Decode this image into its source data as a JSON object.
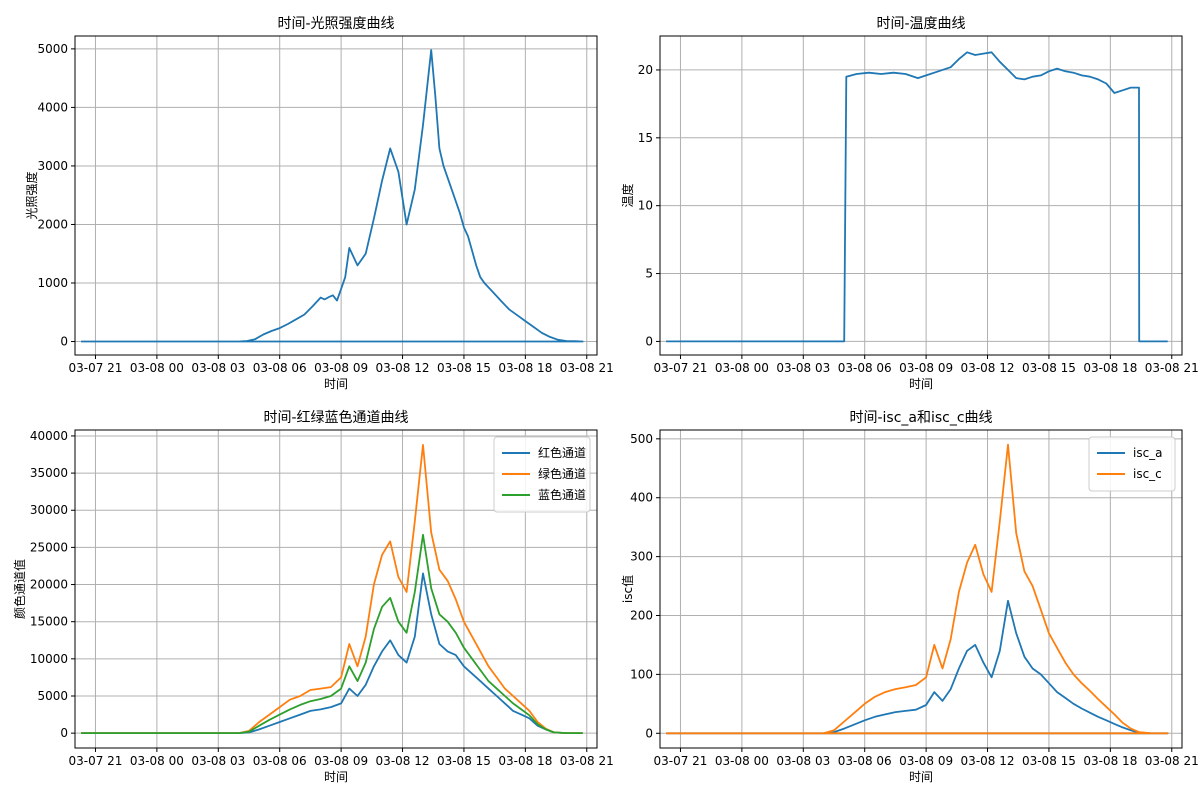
{
  "chart_data": [
    {
      "type": "line",
      "title": "时间-光照强度曲线",
      "xlabel": "时间",
      "ylabel": "光照强度",
      "x_ticks": [
        "03-07 21",
        "03-08 00",
        "03-08 03",
        "03-08 06",
        "03-08 09",
        "03-08 12",
        "03-08 15",
        "03-08 18",
        "03-08 21"
      ],
      "x_range_hours": [
        -1.0,
        24.5
      ],
      "ylim": [
        -230,
        5220
      ],
      "y_ticks": [
        0,
        1000,
        2000,
        3000,
        4000,
        5000
      ],
      "grid": true,
      "legend": null,
      "series": [
        {
          "color": "#1f77b4",
          "x": [
            -0.7,
            7.0,
            7.4,
            7.8,
            8.2,
            8.6,
            9.0,
            9.4,
            9.8,
            10.2,
            10.6,
            11.0,
            11.2,
            11.4,
            11.6,
            11.8,
            12.0,
            12.2,
            12.4,
            12.8,
            13.2,
            13.6,
            14.0,
            14.4,
            14.8,
            15.2,
            15.6,
            16.0,
            16.4,
            16.6,
            16.8,
            17.0,
            17.4,
            17.8,
            18.0,
            18.2,
            18.4,
            18.6,
            18.8,
            19.0,
            19.4,
            19.8,
            20.2,
            20.6,
            21.0,
            21.4,
            21.8,
            22.2,
            22.6,
            23.0,
            23.4,
            23.8,
            23.8,
            10.0,
            -0.7
          ],
          "values": [
            0,
            0,
            10,
            40,
            120,
            180,
            230,
            300,
            380,
            460,
            600,
            750,
            720,
            760,
            790,
            700,
            900,
            1100,
            1600,
            1300,
            1500,
            2100,
            2750,
            3300,
            2900,
            2000,
            2600,
            3700,
            4980,
            4200,
            3300,
            3000,
            2600,
            2200,
            1950,
            1800,
            1550,
            1300,
            1100,
            1000,
            850,
            700,
            550,
            450,
            350,
            250,
            150,
            80,
            30,
            10,
            5,
            0,
            0,
            0,
            0
          ]
        }
      ]
    },
    {
      "type": "line",
      "title": "时间-温度曲线",
      "xlabel": "时间",
      "ylabel": "温度",
      "x_ticks": [
        "03-07 21",
        "03-08 00",
        "03-08 03",
        "03-08 06",
        "03-08 09",
        "03-08 12",
        "03-08 15",
        "03-08 18",
        "03-08 21"
      ],
      "x_range_hours": [
        -1.0,
        24.5
      ],
      "ylim": [
        -1,
        22.5
      ],
      "y_ticks": [
        0,
        5,
        10,
        15,
        20
      ],
      "grid": true,
      "legend": null,
      "series": [
        {
          "color": "#1f77b4",
          "x": [
            -0.7,
            8.0,
            8.1,
            8.6,
            9.2,
            9.8,
            10.4,
            11.0,
            11.6,
            12.0,
            12.6,
            13.2,
            13.6,
            14.0,
            14.4,
            14.8,
            15.2,
            15.6,
            16.0,
            16.4,
            16.8,
            17.2,
            17.6,
            18.0,
            18.4,
            18.8,
            19.2,
            19.6,
            20.0,
            20.4,
            20.8,
            21.2,
            21.6,
            22.0,
            22.4,
            22.41,
            23.0,
            23.8
          ],
          "values": [
            0,
            0,
            19.5,
            19.7,
            19.8,
            19.7,
            19.8,
            19.7,
            19.4,
            19.6,
            19.9,
            20.2,
            20.8,
            21.3,
            21.1,
            21.2,
            21.3,
            20.6,
            20.0,
            19.4,
            19.3,
            19.5,
            19.6,
            19.9,
            20.1,
            19.9,
            19.8,
            19.6,
            19.5,
            19.3,
            19.0,
            18.3,
            18.5,
            18.7,
            18.7,
            0,
            0,
            0
          ]
        }
      ]
    },
    {
      "type": "line",
      "title": "时间-红绿蓝色通道曲线",
      "xlabel": "时间",
      "ylabel": "颜色通道值",
      "x_ticks": [
        "03-07 21",
        "03-08 00",
        "03-08 03",
        "03-08 06",
        "03-08 09",
        "03-08 12",
        "03-08 15",
        "03-08 18",
        "03-08 21"
      ],
      "x_range_hours": [
        -1.0,
        24.5
      ],
      "ylim": [
        -2000,
        40800
      ],
      "y_ticks": [
        0,
        5000,
        10000,
        15000,
        20000,
        25000,
        30000,
        35000,
        40000
      ],
      "grid": true,
      "legend": "top-right",
      "series": [
        {
          "name": "红色通道",
          "color": "#1f77b4",
          "x": [
            -0.7,
            7.0,
            7.5,
            8.0,
            8.5,
            9.0,
            9.5,
            10.0,
            10.5,
            11.0,
            11.5,
            12.0,
            12.4,
            12.8,
            13.2,
            13.6,
            14.0,
            14.4,
            14.8,
            15.2,
            15.6,
            16.0,
            16.4,
            16.8,
            17.2,
            17.6,
            18.0,
            18.4,
            18.8,
            19.2,
            19.6,
            20.0,
            20.4,
            20.8,
            21.2,
            21.6,
            22.0,
            22.4,
            23.0,
            23.8
          ],
          "values": [
            0,
            0,
            100,
            500,
            1000,
            1500,
            2000,
            2500,
            3000,
            3200,
            3500,
            4000,
            6000,
            5000,
            6500,
            9000,
            11000,
            12500,
            10500,
            9500,
            13000,
            21500,
            16000,
            12000,
            11000,
            10500,
            9000,
            8000,
            7000,
            6000,
            5000,
            4000,
            3000,
            2500,
            2000,
            1000,
            500,
            100,
            0,
            0
          ]
        },
        {
          "name": "绿色通道",
          "color": "#ff7f0e",
          "x": [
            -0.7,
            7.0,
            7.5,
            8.0,
            8.5,
            9.0,
            9.5,
            10.0,
            10.5,
            11.0,
            11.5,
            12.0,
            12.4,
            12.8,
            13.2,
            13.6,
            14.0,
            14.4,
            14.8,
            15.2,
            15.6,
            16.0,
            16.4,
            16.8,
            17.2,
            17.6,
            18.0,
            18.4,
            18.8,
            19.2,
            19.6,
            20.0,
            20.4,
            20.8,
            21.2,
            21.6,
            22.0,
            22.4,
            23.0,
            23.8
          ],
          "values": [
            0,
            0,
            300,
            1500,
            2500,
            3500,
            4500,
            5000,
            5800,
            6000,
            6200,
            7500,
            12000,
            9000,
            13000,
            20000,
            24000,
            25800,
            21000,
            19000,
            28500,
            38800,
            27000,
            22000,
            20500,
            18000,
            15000,
            13000,
            11000,
            9000,
            7500,
            6000,
            5000,
            4000,
            3000,
            1500,
            600,
            100,
            0,
            0
          ]
        },
        {
          "name": "蓝色通道",
          "color": "#2ca02c",
          "x": [
            -0.7,
            7.0,
            7.5,
            8.0,
            8.5,
            9.0,
            9.5,
            10.0,
            10.5,
            11.0,
            11.5,
            12.0,
            12.4,
            12.8,
            13.2,
            13.6,
            14.0,
            14.4,
            14.8,
            15.2,
            15.6,
            16.0,
            16.4,
            16.8,
            17.2,
            17.6,
            18.0,
            18.4,
            18.8,
            19.2,
            19.6,
            20.0,
            20.4,
            20.8,
            21.2,
            21.6,
            22.0,
            22.4,
            23.0,
            23.8
          ],
          "values": [
            0,
            0,
            200,
            1000,
            1800,
            2500,
            3200,
            3800,
            4300,
            4600,
            5000,
            6000,
            9000,
            7000,
            9500,
            14000,
            17000,
            18200,
            15000,
            13500,
            19000,
            26700,
            19500,
            16000,
            15000,
            13500,
            11500,
            10000,
            8500,
            7000,
            6000,
            5000,
            4000,
            3200,
            2400,
            1200,
            500,
            100,
            0,
            0
          ]
        }
      ]
    },
    {
      "type": "line",
      "title": "时间-isc_a和isc_c曲线",
      "xlabel": "时间",
      "ylabel": "isc值",
      "x_ticks": [
        "03-07 21",
        "03-08 00",
        "03-08 03",
        "03-08 06",
        "03-08 09",
        "03-08 12",
        "03-08 15",
        "03-08 18",
        "03-08 21"
      ],
      "x_range_hours": [
        -1.0,
        24.5
      ],
      "ylim": [
        -25,
        515
      ],
      "y_ticks": [
        0,
        100,
        200,
        300,
        400,
        500
      ],
      "grid": true,
      "legend": "top-right",
      "series": [
        {
          "name": "isc_a",
          "color": "#1f77b4",
          "x": [
            -0.7,
            7.0,
            7.5,
            8.0,
            8.5,
            9.0,
            9.5,
            10.0,
            10.5,
            11.0,
            11.5,
            12.0,
            12.4,
            12.8,
            13.2,
            13.6,
            14.0,
            14.4,
            14.8,
            15.2,
            15.6,
            16.0,
            16.4,
            16.8,
            17.2,
            17.6,
            18.0,
            18.4,
            18.8,
            19.2,
            19.6,
            20.0,
            20.4,
            20.8,
            21.2,
            21.6,
            22.0,
            22.4,
            23.0,
            23.8,
            23.8,
            10.0,
            -0.7
          ],
          "values": [
            0,
            0,
            2,
            8,
            15,
            22,
            28,
            32,
            36,
            38,
            40,
            48,
            70,
            55,
            75,
            110,
            140,
            150,
            120,
            95,
            140,
            225,
            170,
            130,
            110,
            100,
            85,
            70,
            60,
            50,
            42,
            35,
            28,
            22,
            16,
            10,
            5,
            1,
            0,
            0,
            0,
            0,
            0
          ]
        },
        {
          "name": "isc_c",
          "color": "#ff7f0e",
          "x": [
            -0.7,
            7.0,
            7.5,
            8.0,
            8.5,
            9.0,
            9.5,
            10.0,
            10.5,
            11.0,
            11.5,
            12.0,
            12.4,
            12.8,
            13.2,
            13.6,
            14.0,
            14.4,
            14.8,
            15.2,
            15.6,
            16.0,
            16.4,
            16.8,
            17.2,
            17.6,
            18.0,
            18.4,
            18.8,
            19.2,
            19.6,
            20.0,
            20.4,
            20.8,
            21.2,
            21.6,
            22.0,
            22.4,
            23.0,
            23.8,
            23.8,
            10.0,
            -0.7
          ],
          "values": [
            0,
            0,
            5,
            20,
            35,
            50,
            62,
            70,
            75,
            78,
            82,
            95,
            150,
            110,
            160,
            240,
            290,
            320,
            270,
            240,
            360,
            490,
            340,
            275,
            250,
            210,
            170,
            145,
            120,
            100,
            85,
            72,
            58,
            45,
            32,
            18,
            8,
            2,
            0,
            0,
            0,
            0,
            0
          ]
        }
      ]
    }
  ]
}
